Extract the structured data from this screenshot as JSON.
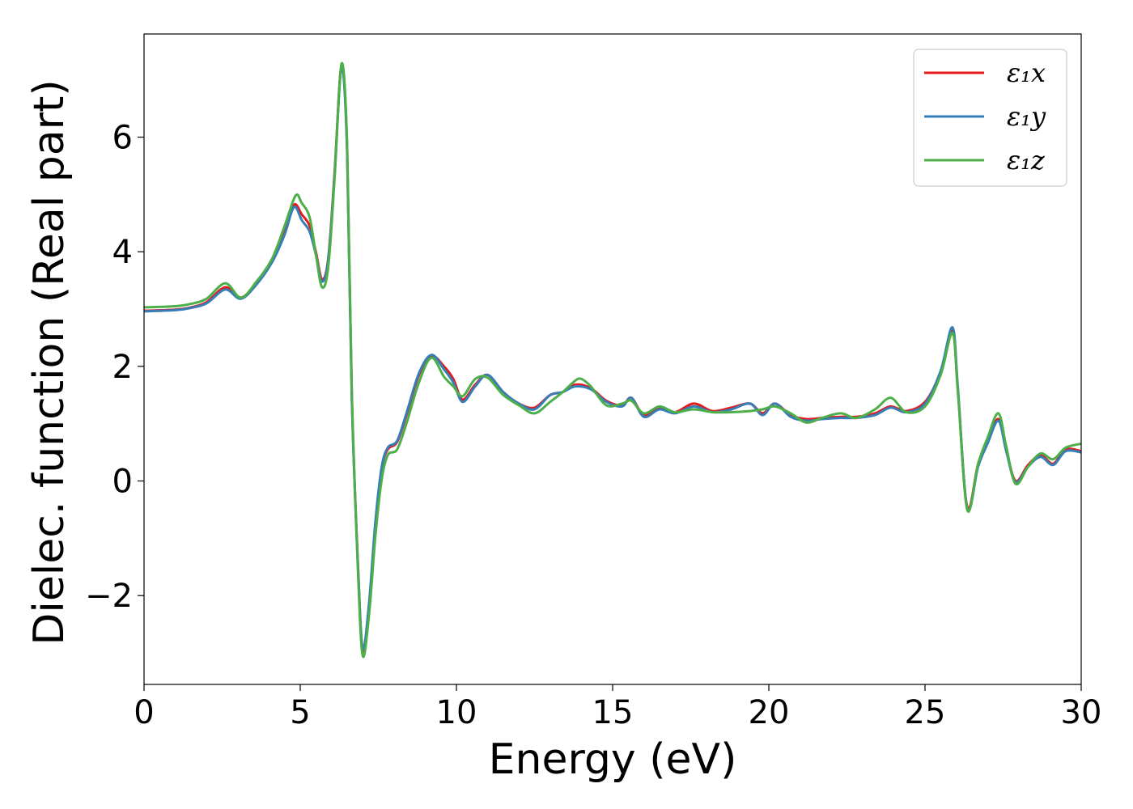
{
  "chart_data": {
    "type": "line",
    "title": "",
    "xlabel": "Energy (eV)",
    "ylabel": "Dielec. function (Real part)",
    "xlim": [
      0,
      30
    ],
    "ylim": [
      -3.55,
      7.8
    ],
    "xticks": [
      "0",
      "5",
      "10",
      "15",
      "20",
      "25",
      "30"
    ],
    "yticks": [
      "−2",
      "0",
      "2",
      "4",
      "6"
    ],
    "grid": false,
    "legend_position": "top-right",
    "series": [
      {
        "name": "ε₁x",
        "color": "#e41a1c",
        "points": [
          [
            0,
            2.97
          ],
          [
            1,
            2.99
          ],
          [
            1.5,
            3.03
          ],
          [
            2,
            3.12
          ],
          [
            2.6,
            3.38
          ],
          [
            3.1,
            3.2
          ],
          [
            3.6,
            3.45
          ],
          [
            4.1,
            3.85
          ],
          [
            4.5,
            4.35
          ],
          [
            4.8,
            4.82
          ],
          [
            5.05,
            4.65
          ],
          [
            5.3,
            4.45
          ],
          [
            5.5,
            4.0
          ],
          [
            5.7,
            3.52
          ],
          [
            5.9,
            3.9
          ],
          [
            6.1,
            5.4
          ],
          [
            6.32,
            7.25
          ],
          [
            6.5,
            5.8
          ],
          [
            6.65,
            1.5
          ],
          [
            6.85,
            -1.5
          ],
          [
            7.0,
            -2.95
          ],
          [
            7.2,
            -2.2
          ],
          [
            7.4,
            -0.8
          ],
          [
            7.6,
            0.2
          ],
          [
            7.8,
            0.55
          ],
          [
            8.1,
            0.68
          ],
          [
            8.4,
            1.15
          ],
          [
            8.8,
            1.85
          ],
          [
            9.2,
            2.18
          ],
          [
            9.6,
            2.0
          ],
          [
            9.9,
            1.78
          ],
          [
            10.2,
            1.42
          ],
          [
            10.6,
            1.68
          ],
          [
            11.0,
            1.85
          ],
          [
            11.5,
            1.55
          ],
          [
            12.0,
            1.35
          ],
          [
            12.5,
            1.28
          ],
          [
            13.0,
            1.5
          ],
          [
            13.4,
            1.55
          ],
          [
            13.8,
            1.68
          ],
          [
            14.3,
            1.62
          ],
          [
            14.8,
            1.4
          ],
          [
            15.3,
            1.32
          ],
          [
            15.6,
            1.45
          ],
          [
            16.0,
            1.15
          ],
          [
            16.5,
            1.28
          ],
          [
            17.0,
            1.2
          ],
          [
            17.6,
            1.35
          ],
          [
            18.2,
            1.22
          ],
          [
            18.8,
            1.28
          ],
          [
            19.4,
            1.35
          ],
          [
            19.8,
            1.18
          ],
          [
            20.2,
            1.35
          ],
          [
            20.7,
            1.15
          ],
          [
            21.2,
            1.08
          ],
          [
            21.7,
            1.1
          ],
          [
            22.3,
            1.12
          ],
          [
            22.8,
            1.12
          ],
          [
            23.4,
            1.18
          ],
          [
            23.9,
            1.3
          ],
          [
            24.4,
            1.22
          ],
          [
            25.0,
            1.38
          ],
          [
            25.5,
            1.9
          ],
          [
            25.88,
            2.62
          ],
          [
            26.05,
            1.6
          ],
          [
            26.35,
            -0.45
          ],
          [
            26.7,
            0.3
          ],
          [
            27.0,
            0.7
          ],
          [
            27.35,
            1.08
          ],
          [
            27.6,
            0.55
          ],
          [
            27.9,
            0.0
          ],
          [
            28.3,
            0.28
          ],
          [
            28.7,
            0.45
          ],
          [
            29.1,
            0.3
          ],
          [
            29.5,
            0.55
          ],
          [
            30,
            0.52
          ]
        ]
      },
      {
        "name": "ε₁y",
        "color": "#377eb8",
        "points": [
          [
            0,
            2.96
          ],
          [
            1,
            2.98
          ],
          [
            1.5,
            3.02
          ],
          [
            2,
            3.1
          ],
          [
            2.6,
            3.34
          ],
          [
            3.1,
            3.18
          ],
          [
            3.6,
            3.43
          ],
          [
            4.1,
            3.82
          ],
          [
            4.5,
            4.3
          ],
          [
            4.8,
            4.78
          ],
          [
            5.05,
            4.55
          ],
          [
            5.3,
            4.35
          ],
          [
            5.5,
            3.95
          ],
          [
            5.7,
            3.48
          ],
          [
            5.9,
            3.88
          ],
          [
            6.1,
            5.35
          ],
          [
            6.32,
            7.22
          ],
          [
            6.5,
            5.75
          ],
          [
            6.65,
            1.45
          ],
          [
            6.85,
            -1.5
          ],
          [
            7.0,
            -2.92
          ],
          [
            7.2,
            -2.15
          ],
          [
            7.4,
            -0.75
          ],
          [
            7.6,
            0.22
          ],
          [
            7.8,
            0.58
          ],
          [
            8.1,
            0.7
          ],
          [
            8.4,
            1.18
          ],
          [
            8.8,
            1.88
          ],
          [
            9.2,
            2.2
          ],
          [
            9.6,
            1.95
          ],
          [
            9.9,
            1.72
          ],
          [
            10.2,
            1.38
          ],
          [
            10.6,
            1.65
          ],
          [
            11.0,
            1.85
          ],
          [
            11.5,
            1.55
          ],
          [
            12.0,
            1.35
          ],
          [
            12.5,
            1.25
          ],
          [
            13.0,
            1.5
          ],
          [
            13.4,
            1.55
          ],
          [
            13.8,
            1.65
          ],
          [
            14.3,
            1.6
          ],
          [
            14.8,
            1.38
          ],
          [
            15.3,
            1.3
          ],
          [
            15.6,
            1.45
          ],
          [
            16.0,
            1.12
          ],
          [
            16.5,
            1.25
          ],
          [
            17.0,
            1.18
          ],
          [
            17.6,
            1.3
          ],
          [
            18.2,
            1.2
          ],
          [
            18.8,
            1.25
          ],
          [
            19.4,
            1.35
          ],
          [
            19.8,
            1.15
          ],
          [
            20.2,
            1.35
          ],
          [
            20.7,
            1.12
          ],
          [
            21.2,
            1.05
          ],
          [
            21.7,
            1.08
          ],
          [
            22.3,
            1.1
          ],
          [
            22.8,
            1.1
          ],
          [
            23.4,
            1.15
          ],
          [
            23.9,
            1.28
          ],
          [
            24.4,
            1.2
          ],
          [
            25.0,
            1.35
          ],
          [
            25.5,
            1.92
          ],
          [
            25.88,
            2.68
          ],
          [
            26.05,
            1.65
          ],
          [
            26.35,
            -0.48
          ],
          [
            26.7,
            0.25
          ],
          [
            27.0,
            0.65
          ],
          [
            27.35,
            1.05
          ],
          [
            27.6,
            0.52
          ],
          [
            27.9,
            -0.02
          ],
          [
            28.3,
            0.25
          ],
          [
            28.7,
            0.42
          ],
          [
            29.1,
            0.28
          ],
          [
            29.5,
            0.52
          ],
          [
            30,
            0.5
          ]
        ]
      },
      {
        "name": "ε₁z",
        "color": "#4daf4a",
        "points": [
          [
            0,
            3.03
          ],
          [
            1,
            3.05
          ],
          [
            1.5,
            3.09
          ],
          [
            2,
            3.18
          ],
          [
            2.6,
            3.45
          ],
          [
            3.1,
            3.2
          ],
          [
            3.6,
            3.48
          ],
          [
            4.1,
            3.88
          ],
          [
            4.5,
            4.45
          ],
          [
            4.85,
            4.98
          ],
          [
            5.05,
            4.85
          ],
          [
            5.3,
            4.6
          ],
          [
            5.5,
            3.95
          ],
          [
            5.7,
            3.38
          ],
          [
            5.9,
            3.75
          ],
          [
            6.1,
            5.3
          ],
          [
            6.32,
            7.28
          ],
          [
            6.5,
            5.9
          ],
          [
            6.65,
            1.6
          ],
          [
            6.85,
            -1.6
          ],
          [
            7.0,
            -3.05
          ],
          [
            7.2,
            -2.35
          ],
          [
            7.4,
            -1.0
          ],
          [
            7.6,
            0.0
          ],
          [
            7.8,
            0.45
          ],
          [
            8.1,
            0.55
          ],
          [
            8.4,
            1.0
          ],
          [
            8.8,
            1.72
          ],
          [
            9.2,
            2.15
          ],
          [
            9.6,
            1.82
          ],
          [
            9.9,
            1.65
          ],
          [
            10.2,
            1.48
          ],
          [
            10.6,
            1.78
          ],
          [
            11.0,
            1.8
          ],
          [
            11.5,
            1.5
          ],
          [
            12.0,
            1.32
          ],
          [
            12.5,
            1.18
          ],
          [
            13.0,
            1.38
          ],
          [
            13.4,
            1.55
          ],
          [
            13.8,
            1.75
          ],
          [
            14.0,
            1.78
          ],
          [
            14.3,
            1.65
          ],
          [
            14.8,
            1.32
          ],
          [
            15.3,
            1.35
          ],
          [
            15.6,
            1.4
          ],
          [
            16.0,
            1.18
          ],
          [
            16.5,
            1.3
          ],
          [
            17.0,
            1.2
          ],
          [
            17.6,
            1.25
          ],
          [
            18.2,
            1.2
          ],
          [
            18.8,
            1.2
          ],
          [
            19.4,
            1.22
          ],
          [
            19.8,
            1.25
          ],
          [
            20.2,
            1.3
          ],
          [
            20.7,
            1.18
          ],
          [
            21.2,
            1.02
          ],
          [
            21.7,
            1.1
          ],
          [
            22.3,
            1.18
          ],
          [
            22.8,
            1.1
          ],
          [
            23.4,
            1.25
          ],
          [
            23.9,
            1.45
          ],
          [
            24.4,
            1.2
          ],
          [
            25.0,
            1.3
          ],
          [
            25.5,
            1.85
          ],
          [
            25.88,
            2.58
          ],
          [
            26.05,
            1.58
          ],
          [
            26.35,
            -0.5
          ],
          [
            26.7,
            0.3
          ],
          [
            27.0,
            0.75
          ],
          [
            27.35,
            1.18
          ],
          [
            27.6,
            0.6
          ],
          [
            27.9,
            -0.05
          ],
          [
            28.3,
            0.25
          ],
          [
            28.7,
            0.48
          ],
          [
            29.1,
            0.38
          ],
          [
            29.5,
            0.58
          ],
          [
            30,
            0.65
          ]
        ]
      }
    ]
  }
}
